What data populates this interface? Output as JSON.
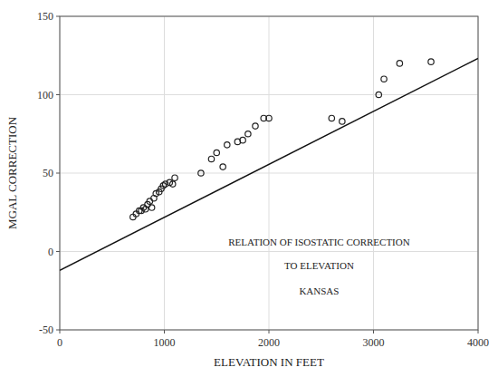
{
  "chart_data": {
    "type": "scatter",
    "annotations": [
      "RELATION OF ISOSTATIC CORRECTION",
      "TO ELEVATION",
      "KANSAS"
    ],
    "xlabel": "ELEVATION IN FEET",
    "ylabel": "MGAL CORRECTION",
    "xlim": [
      0,
      4000
    ],
    "ylim": [
      -50,
      150
    ],
    "xticks": [
      0,
      1000,
      2000,
      3000,
      4000
    ],
    "yticks": [
      -50,
      0,
      50,
      100,
      150
    ],
    "grid": true,
    "series": [
      {
        "type": "scatter",
        "marker": "circle",
        "color": "#222222",
        "x": [
          700,
          730,
          760,
          780,
          800,
          820,
          840,
          860,
          880,
          900,
          920,
          950,
          970,
          990,
          1010,
          1050,
          1080,
          1100,
          1350,
          1450,
          1500,
          1560,
          1600,
          1700,
          1750,
          1800,
          1870,
          1950,
          2000,
          2600,
          2700,
          3050,
          3100,
          3250,
          3550
        ],
        "values": [
          22,
          24,
          26,
          26,
          28,
          27,
          30,
          32,
          28,
          34,
          37,
          38,
          40,
          42,
          43,
          44,
          43,
          47,
          50,
          59,
          63,
          54,
          68,
          70,
          71,
          75,
          80,
          85,
          85,
          85,
          83,
          100,
          110,
          120,
          121
        ]
      },
      {
        "type": "line",
        "color": "#111111",
        "x": [
          0,
          4000
        ],
        "values": [
          -12,
          123.2
        ]
      }
    ]
  }
}
